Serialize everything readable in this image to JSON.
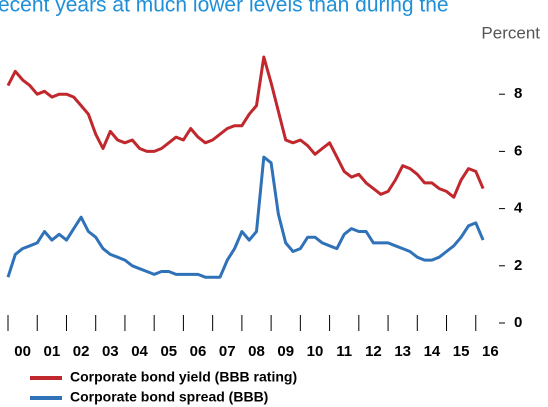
{
  "chart_data": {
    "type": "line",
    "title": "ecent years at much lower levels than during the",
    "unit_label": "Percent",
    "xlim": [
      2000,
      2017
    ],
    "xticks": [
      {
        "value": 2000,
        "label": "00"
      },
      {
        "value": 2001,
        "label": "01"
      },
      {
        "value": 2002,
        "label": "02"
      },
      {
        "value": 2003,
        "label": "03"
      },
      {
        "value": 2004,
        "label": "04"
      },
      {
        "value": 2005,
        "label": "05"
      },
      {
        "value": 2006,
        "label": "06"
      },
      {
        "value": 2007,
        "label": "07"
      },
      {
        "value": 2008,
        "label": "08"
      },
      {
        "value": 2009,
        "label": "09"
      },
      {
        "value": 2010,
        "label": "10"
      },
      {
        "value": 2011,
        "label": "11"
      },
      {
        "value": 2012,
        "label": "12"
      },
      {
        "value": 2013,
        "label": "13"
      },
      {
        "value": 2014,
        "label": "14"
      },
      {
        "value": 2015,
        "label": "15"
      },
      {
        "value": 2016,
        "label": "16"
      }
    ],
    "ylim": [
      0,
      10
    ],
    "yticks": [
      0,
      2,
      4,
      6,
      8
    ],
    "x": [
      2000,
      2000.25,
      2000.5,
      2000.75,
      2001,
      2001.25,
      2001.5,
      2001.75,
      2002,
      2002.25,
      2002.5,
      2002.75,
      2003,
      2003.25,
      2003.5,
      2003.75,
      2004,
      2004.25,
      2004.5,
      2004.75,
      2005,
      2005.25,
      2005.5,
      2005.75,
      2006,
      2006.25,
      2006.5,
      2006.75,
      2007,
      2007.25,
      2007.5,
      2007.75,
      2008,
      2008.25,
      2008.5,
      2008.75,
      2009,
      2009.25,
      2009.5,
      2009.75,
      2010,
      2010.25,
      2010.5,
      2010.75,
      2011,
      2011.25,
      2011.5,
      2011.75,
      2012,
      2012.25,
      2012.5,
      2012.75,
      2013,
      2013.25,
      2013.5,
      2013.75,
      2014,
      2014.25,
      2014.5,
      2014.75,
      2015,
      2015.25,
      2015.5,
      2015.75,
      2016,
      2016.25
    ],
    "series": [
      {
        "name": "Corporate bond yield (BBB rating)",
        "color": "#c0282d",
        "values": [
          8.3,
          8.8,
          8.5,
          8.3,
          8.0,
          8.1,
          7.9,
          8.0,
          8.0,
          7.9,
          7.6,
          7.3,
          6.6,
          6.1,
          6.7,
          6.4,
          6.3,
          6.4,
          6.1,
          6.0,
          6.0,
          6.1,
          6.3,
          6.5,
          6.4,
          6.8,
          6.5,
          6.3,
          6.4,
          6.6,
          6.8,
          6.9,
          6.9,
          7.3,
          7.6,
          9.3,
          8.4,
          7.4,
          6.4,
          6.3,
          6.4,
          6.2,
          5.9,
          6.1,
          6.3,
          5.8,
          5.3,
          5.1,
          5.2,
          4.9,
          4.7,
          4.5,
          4.6,
          5.0,
          5.5,
          5.4,
          5.2,
          4.9,
          4.9,
          4.7,
          4.6,
          4.4,
          5.0,
          5.4,
          5.3,
          4.7
        ]
      },
      {
        "name": "Corporate bond spread (BBB)",
        "color": "#2f72b8",
        "values": [
          1.6,
          2.4,
          2.6,
          2.7,
          2.8,
          3.2,
          2.9,
          3.1,
          2.9,
          3.3,
          3.7,
          3.2,
          3.0,
          2.6,
          2.4,
          2.3,
          2.2,
          2.0,
          1.9,
          1.8,
          1.7,
          1.8,
          1.8,
          1.7,
          1.7,
          1.7,
          1.7,
          1.6,
          1.6,
          1.6,
          2.2,
          2.6,
          3.2,
          2.9,
          3.2,
          5.8,
          5.6,
          3.8,
          2.8,
          2.5,
          2.6,
          3.0,
          3.0,
          2.8,
          2.7,
          2.6,
          3.1,
          3.3,
          3.2,
          3.2,
          2.8,
          2.8,
          2.8,
          2.7,
          2.6,
          2.5,
          2.3,
          2.2,
          2.2,
          2.3,
          2.5,
          2.7,
          3.0,
          3.4,
          3.5,
          2.9
        ]
      }
    ]
  }
}
